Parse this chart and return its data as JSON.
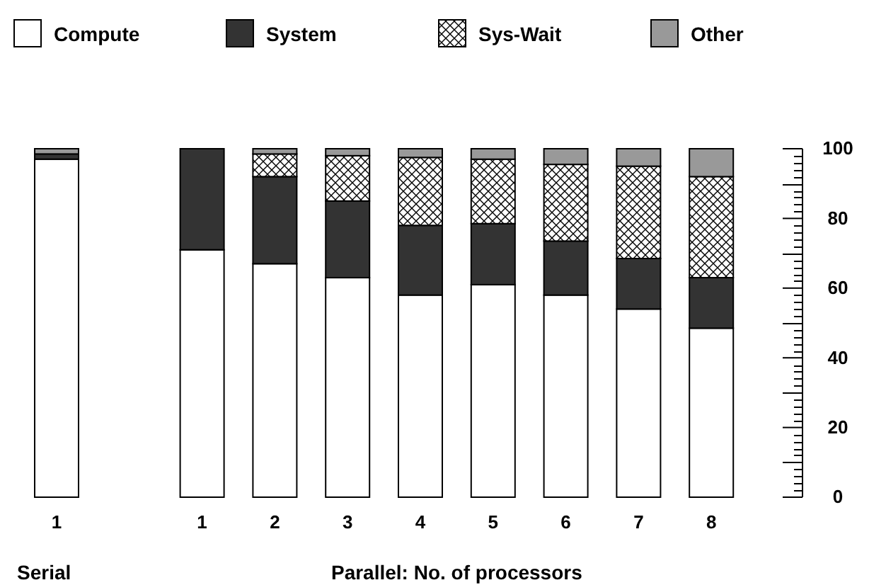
{
  "chart_data": {
    "type": "bar",
    "stacked": true,
    "legend": "top",
    "grid": false,
    "categories": [
      "1",
      "1",
      "2",
      "3",
      "4",
      "5",
      "6",
      "7",
      "8"
    ],
    "series": [
      {
        "name": "Compute",
        "color": "#ffffff",
        "values": [
          97,
          71,
          67,
          63,
          58,
          61,
          58,
          54,
          48.5
        ]
      },
      {
        "name": "System",
        "color": "#333333",
        "values": [
          1.5,
          29,
          25,
          22,
          20,
          17.5,
          15.5,
          14.5,
          14.5
        ]
      },
      {
        "name": "Sys-Wait",
        "color": "#000000",
        "values": [
          0,
          0,
          6.5,
          13,
          19.5,
          18.5,
          22,
          26.5,
          29
        ]
      },
      {
        "name": "Other",
        "color": "#999999",
        "values": [
          1.5,
          0,
          1.5,
          2,
          2.5,
          3,
          4.5,
          5,
          8
        ]
      }
    ],
    "ylim": [
      0,
      100
    ],
    "yticks": [
      0,
      20,
      40,
      60,
      80,
      100
    ],
    "annotations": [
      "Serial",
      "Parallel: No. of processors"
    ]
  }
}
